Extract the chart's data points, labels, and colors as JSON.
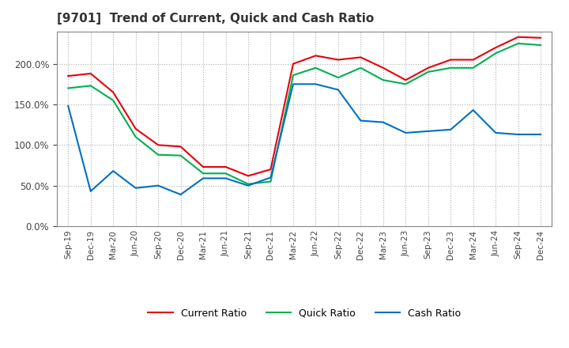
{
  "title": "[9701]  Trend of Current, Quick and Cash Ratio",
  "labels": [
    "Sep-19",
    "Dec-19",
    "Mar-20",
    "Jun-20",
    "Sep-20",
    "Dec-20",
    "Mar-21",
    "Jun-21",
    "Sep-21",
    "Dec-21",
    "Mar-22",
    "Jun-22",
    "Sep-22",
    "Dec-22",
    "Mar-23",
    "Jun-23",
    "Sep-23",
    "Dec-23",
    "Mar-24",
    "Jun-24",
    "Sep-24",
    "Dec-24"
  ],
  "current_ratio": [
    185,
    188,
    165,
    120,
    100,
    98,
    73,
    73,
    62,
    70,
    200,
    210,
    205,
    208,
    195,
    180,
    195,
    205,
    205,
    220,
    233,
    232
  ],
  "quick_ratio": [
    170,
    173,
    155,
    110,
    88,
    87,
    65,
    65,
    52,
    55,
    186,
    195,
    183,
    195,
    180,
    175,
    190,
    195,
    195,
    213,
    225,
    223
  ],
  "cash_ratio": [
    148,
    43,
    68,
    47,
    50,
    39,
    59,
    59,
    50,
    60,
    175,
    175,
    168,
    130,
    128,
    115,
    117,
    119,
    143,
    115,
    113,
    113
  ],
  "current_color": "#e8000d",
  "quick_color": "#00b050",
  "cash_color": "#0070c0",
  "ylim": [
    0,
    240
  ],
  "yticks": [
    0,
    50,
    100,
    150,
    200
  ],
  "background_color": "#ffffff",
  "grid_color": "#b0b0b0"
}
